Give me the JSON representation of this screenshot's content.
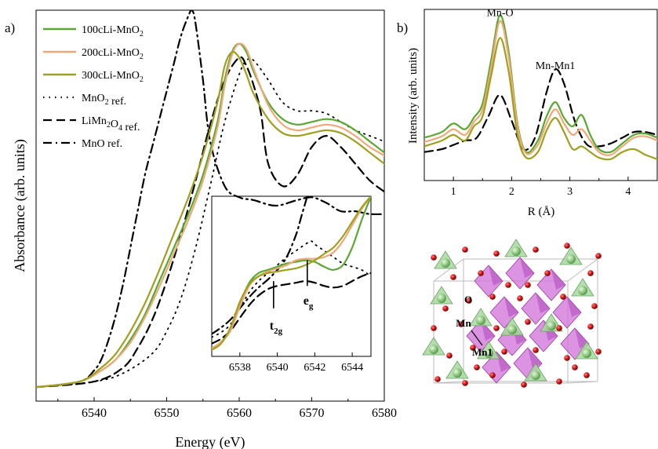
{
  "colors": {
    "c100": "#5aa832",
    "c200": "#f0a878",
    "c300": "#a0a020",
    "ref": "#000000",
    "exafs_ref": "#000000",
    "oct_fill": "#d070d8",
    "tet_fill": "#a8d8a0",
    "atom_O": "#cc1111"
  },
  "figure": {
    "panel_a_label": "a)",
    "panel_b_label": "b)"
  },
  "chart_data": [
    {
      "type": "line",
      "panel": "a",
      "xlabel": "Energy (eV)",
      "ylabel": "Absorbance (arb. units)",
      "xlim": [
        6532,
        6580
      ],
      "ylim": [
        -0.05,
        1.35
      ],
      "xticks": [
        6540,
        6550,
        6560,
        6570,
        6580
      ],
      "y_ticks_labeled": false,
      "legend_position": "top-left",
      "series": [
        {
          "name": "100cLi-MnO",
          "sub": "2",
          "suffix": "",
          "style": "solid",
          "colorKey": "c100",
          "x": [
            6532,
            6538,
            6541,
            6543,
            6545,
            6547,
            6549,
            6551,
            6553,
            6555,
            6557,
            6558,
            6559,
            6560,
            6561,
            6562,
            6564,
            6566,
            6568,
            6570,
            6572,
            6574,
            6576,
            6578,
            6580
          ],
          "y": [
            0.0,
            0.02,
            0.06,
            0.1,
            0.17,
            0.26,
            0.38,
            0.5,
            0.62,
            0.76,
            0.95,
            1.1,
            1.2,
            1.23,
            1.2,
            1.13,
            1.02,
            0.96,
            0.94,
            0.95,
            0.96,
            0.95,
            0.92,
            0.88,
            0.84
          ]
        },
        {
          "name": "200cLi-MnO",
          "sub": "2",
          "suffix": "",
          "style": "solid",
          "colorKey": "c200",
          "x": [
            6532,
            6538,
            6541,
            6543,
            6545,
            6547,
            6549,
            6551,
            6553,
            6555,
            6557,
            6558,
            6559,
            6560,
            6561,
            6562,
            6564,
            6566,
            6568,
            6570,
            6572,
            6574,
            6576,
            6578,
            6580
          ],
          "y": [
            0.0,
            0.02,
            0.06,
            0.1,
            0.16,
            0.25,
            0.36,
            0.48,
            0.6,
            0.74,
            0.93,
            1.08,
            1.19,
            1.23,
            1.21,
            1.14,
            1.01,
            0.94,
            0.92,
            0.93,
            0.94,
            0.93,
            0.9,
            0.86,
            0.83
          ]
        },
        {
          "name": "300cLi-MnO",
          "sub": "2",
          "suffix": "",
          "style": "solid",
          "colorKey": "c300",
          "x": [
            6532,
            6538,
            6541,
            6543,
            6545,
            6547,
            6549,
            6551,
            6553,
            6555,
            6557,
            6558,
            6559,
            6560,
            6561,
            6562,
            6564,
            6566,
            6568,
            6570,
            6572,
            6574,
            6576,
            6578,
            6580
          ],
          "y": [
            0.0,
            0.02,
            0.07,
            0.12,
            0.2,
            0.3,
            0.42,
            0.55,
            0.68,
            0.83,
            1.02,
            1.15,
            1.2,
            1.18,
            1.12,
            1.05,
            0.96,
            0.91,
            0.9,
            0.91,
            0.92,
            0.91,
            0.88,
            0.84,
            0.8
          ]
        },
        {
          "name": "MnO",
          "sub": "2",
          "suffix": " ref.",
          "style": "dotted",
          "colorKey": "ref",
          "x": [
            6532,
            6540,
            6544,
            6548,
            6550,
            6552,
            6554,
            6556,
            6558,
            6560,
            6561,
            6562,
            6564,
            6566,
            6568,
            6570,
            6572,
            6574,
            6576,
            6578,
            6580
          ],
          "y": [
            0.0,
            0.02,
            0.05,
            0.12,
            0.2,
            0.32,
            0.5,
            0.72,
            0.95,
            1.12,
            1.17,
            1.17,
            1.1,
            1.02,
            0.99,
            0.99,
            0.98,
            0.95,
            0.92,
            0.9,
            0.88
          ]
        },
        {
          "name": "LiMn",
          "sub": "2",
          "suffix": "O",
          "sub2": "4",
          "suffix2": " ref.",
          "style": "dashed",
          "colorKey": "ref",
          "x": [
            6532,
            6540,
            6544,
            6546,
            6548,
            6550,
            6552,
            6554,
            6556,
            6558,
            6560,
            6561,
            6562,
            6563,
            6564,
            6566,
            6568,
            6570,
            6572,
            6574,
            6576,
            6578,
            6580
          ],
          "y": [
            0.0,
            0.02,
            0.07,
            0.14,
            0.24,
            0.38,
            0.55,
            0.74,
            0.94,
            1.1,
            1.18,
            1.15,
            1.08,
            0.98,
            0.8,
            0.72,
            0.76,
            0.86,
            0.9,
            0.86,
            0.8,
            0.74,
            0.7
          ]
        },
        {
          "name": "MnO",
          "sub": "",
          "suffix": " ref.",
          "style": "dashdot",
          "colorKey": "ref",
          "x": [
            6532,
            6538,
            6540,
            6541,
            6542,
            6543,
            6544,
            6545,
            6546,
            6547,
            6548,
            6549,
            6550,
            6551,
            6552,
            6553,
            6553.5,
            6554,
            6555,
            6556,
            6558,
            6560,
            6562,
            6565,
            6568,
            6570,
            6572,
            6574,
            6576,
            6578,
            6580
          ],
          "y": [
            0.0,
            0.02,
            0.06,
            0.1,
            0.17,
            0.26,
            0.37,
            0.5,
            0.63,
            0.76,
            0.86,
            0.96,
            1.06,
            1.16,
            1.26,
            1.33,
            1.35,
            1.3,
            1.1,
            0.88,
            0.72,
            0.68,
            0.67,
            0.65,
            0.67,
            0.68,
            0.66,
            0.63,
            0.63,
            0.62,
            0.62
          ]
        }
      ]
    },
    {
      "type": "line",
      "panel": "a-inset",
      "xlim": [
        6536.5,
        6545
      ],
      "ylim": [
        0.0,
        1.0
      ],
      "xticks": [
        6538,
        6540,
        6542,
        6544
      ],
      "annotations": [
        {
          "label": "t",
          "sub": "2g",
          "x": 6539.8
        },
        {
          "label": "e",
          "sub": "g",
          "x": 6541.6
        }
      ],
      "series": [
        {
          "name": "100cLi-MnO2",
          "colorKey": "c100",
          "style": "solid",
          "x": [
            6536.5,
            6537,
            6537.5,
            6538,
            6538.5,
            6539,
            6539.5,
            6540,
            6540.5,
            6541,
            6541.5,
            6542,
            6542.5,
            6543,
            6543.5,
            6544,
            6544.5,
            6545
          ],
          "y": [
            0.05,
            0.09,
            0.17,
            0.33,
            0.46,
            0.52,
            0.54,
            0.56,
            0.58,
            0.59,
            0.6,
            0.59,
            0.56,
            0.54,
            0.57,
            0.68,
            0.85,
            1.0
          ]
        },
        {
          "name": "200cLi-MnO2",
          "colorKey": "c200",
          "style": "solid",
          "x": [
            6536.5,
            6537,
            6537.5,
            6538,
            6538.5,
            6539,
            6539.5,
            6540,
            6540.5,
            6541,
            6541.5,
            6542,
            6542.5,
            6543,
            6543.5,
            6544,
            6544.5,
            6545
          ],
          "y": [
            0.05,
            0.09,
            0.16,
            0.31,
            0.44,
            0.5,
            0.53,
            0.55,
            0.57,
            0.6,
            0.61,
            0.61,
            0.62,
            0.65,
            0.72,
            0.82,
            0.92,
            1.0
          ]
        },
        {
          "name": "300cLi-MnO2",
          "colorKey": "c300",
          "style": "solid",
          "x": [
            6536.5,
            6537,
            6537.5,
            6538,
            6538.5,
            6539,
            6539.5,
            6540,
            6540.5,
            6541,
            6541.5,
            6542,
            6542.5,
            6543,
            6543.5,
            6544,
            6544.5,
            6545
          ],
          "y": [
            0.04,
            0.08,
            0.18,
            0.34,
            0.45,
            0.5,
            0.52,
            0.53,
            0.54,
            0.55,
            0.57,
            0.6,
            0.64,
            0.68,
            0.75,
            0.84,
            0.93,
            1.0
          ]
        },
        {
          "name": "MnO2 ref.",
          "colorKey": "ref",
          "style": "dotted",
          "x": [
            6536.5,
            6537,
            6537.5,
            6538,
            6538.5,
            6539,
            6539.5,
            6540,
            6540.5,
            6541,
            6541.5,
            6541.8,
            6542,
            6542.5,
            6543,
            6543.5,
            6544,
            6544.5,
            6545
          ],
          "y": [
            0.12,
            0.15,
            0.2,
            0.3,
            0.4,
            0.47,
            0.52,
            0.57,
            0.62,
            0.66,
            0.7,
            0.72,
            0.7,
            0.66,
            0.62,
            0.58,
            0.56,
            0.54,
            0.5
          ]
        },
        {
          "name": "LiMn2O4 ref.",
          "colorKey": "ref",
          "style": "dashed",
          "x": [
            6536.5,
            6537,
            6537.5,
            6538,
            6538.5,
            6539,
            6539.5,
            6540,
            6540.5,
            6541,
            6541.5,
            6542,
            6542.5,
            6543,
            6543.5,
            6544,
            6544.5,
            6545
          ],
          "y": [
            0.08,
            0.11,
            0.16,
            0.24,
            0.32,
            0.38,
            0.42,
            0.44,
            0.45,
            0.46,
            0.47,
            0.46,
            0.44,
            0.43,
            0.44,
            0.47,
            0.5,
            0.52
          ]
        },
        {
          "name": "MnO ref.",
          "colorKey": "ref",
          "style": "dashdot",
          "x": [
            6536.5,
            6537,
            6537.5,
            6538,
            6538.5,
            6539,
            6539.5,
            6540,
            6540.5,
            6541,
            6541.3,
            6541.6
          ],
          "y": [
            0.14,
            0.18,
            0.23,
            0.3,
            0.37,
            0.43,
            0.48,
            0.54,
            0.62,
            0.76,
            0.88,
            1.0
          ]
        }
      ]
    },
    {
      "type": "line",
      "panel": "b",
      "xlabel": "R (Å)",
      "ylabel": "Intensity (arb. units)",
      "xlim": [
        0.5,
        4.5
      ],
      "ylim": [
        0.0,
        1.2
      ],
      "xticks": [
        1,
        2,
        3,
        4
      ],
      "y_ticks_labeled": false,
      "annotations": [
        {
          "label": "Mn-O",
          "x": 1.8,
          "y": 1.12
        },
        {
          "label": "Mn-Mn1",
          "x": 2.75,
          "y": 0.75
        }
      ],
      "series": [
        {
          "name": "100cLi-MnO2",
          "colorKey": "c100",
          "style": "solid",
          "x": [
            0.5,
            0.8,
            1.0,
            1.2,
            1.35,
            1.5,
            1.65,
            1.8,
            1.95,
            2.1,
            2.25,
            2.45,
            2.6,
            2.75,
            2.9,
            3.05,
            3.2,
            3.35,
            3.5,
            3.7,
            3.9,
            4.1,
            4.3,
            4.5
          ],
          "y": [
            0.3,
            0.34,
            0.4,
            0.36,
            0.44,
            0.54,
            0.85,
            1.16,
            0.9,
            0.4,
            0.2,
            0.28,
            0.45,
            0.55,
            0.44,
            0.38,
            0.46,
            0.32,
            0.22,
            0.2,
            0.26,
            0.32,
            0.33,
            0.3
          ]
        },
        {
          "name": "200cLi-MnO2",
          "colorKey": "c200",
          "style": "solid",
          "x": [
            0.5,
            0.8,
            1.0,
            1.2,
            1.35,
            1.5,
            1.65,
            1.8,
            1.95,
            2.1,
            2.25,
            2.45,
            2.6,
            2.75,
            2.9,
            3.05,
            3.2,
            3.35,
            3.5,
            3.7,
            3.9,
            4.1,
            4.3,
            4.5
          ],
          "y": [
            0.27,
            0.31,
            0.36,
            0.32,
            0.41,
            0.5,
            0.8,
            1.12,
            0.86,
            0.38,
            0.19,
            0.25,
            0.4,
            0.5,
            0.4,
            0.32,
            0.36,
            0.28,
            0.2,
            0.18,
            0.24,
            0.3,
            0.31,
            0.28
          ]
        },
        {
          "name": "300cLi-MnO2",
          "colorKey": "c300",
          "style": "solid",
          "x": [
            0.5,
            0.8,
            1.0,
            1.2,
            1.35,
            1.5,
            1.65,
            1.8,
            1.95,
            2.1,
            2.25,
            2.45,
            2.6,
            2.75,
            2.9,
            3.05,
            3.2,
            3.35,
            3.5,
            3.7,
            3.9,
            4.1,
            4.3,
            4.5
          ],
          "y": [
            0.24,
            0.28,
            0.32,
            0.28,
            0.38,
            0.45,
            0.74,
            1.0,
            0.76,
            0.32,
            0.16,
            0.2,
            0.35,
            0.44,
            0.34,
            0.22,
            0.24,
            0.2,
            0.16,
            0.15,
            0.2,
            0.22,
            0.18,
            0.15
          ]
        },
        {
          "name": "reference",
          "colorKey": "exafs_ref",
          "style": "dashed",
          "x": [
            0.5,
            0.8,
            1.0,
            1.2,
            1.4,
            1.6,
            1.8,
            2.0,
            2.2,
            2.4,
            2.6,
            2.75,
            2.9,
            3.1,
            3.3,
            3.5,
            3.7,
            3.9,
            4.1,
            4.3,
            4.5
          ],
          "y": [
            0.2,
            0.22,
            0.25,
            0.28,
            0.3,
            0.45,
            0.6,
            0.42,
            0.22,
            0.3,
            0.62,
            0.78,
            0.68,
            0.4,
            0.25,
            0.24,
            0.26,
            0.3,
            0.34,
            0.34,
            0.32
          ]
        }
      ]
    }
  ],
  "crystal": {
    "labels": [
      {
        "key": "O",
        "text": "O"
      },
      {
        "key": "Mn",
        "text": "Mn"
      },
      {
        "key": "Mn1",
        "text": "Mn1"
      }
    ]
  }
}
